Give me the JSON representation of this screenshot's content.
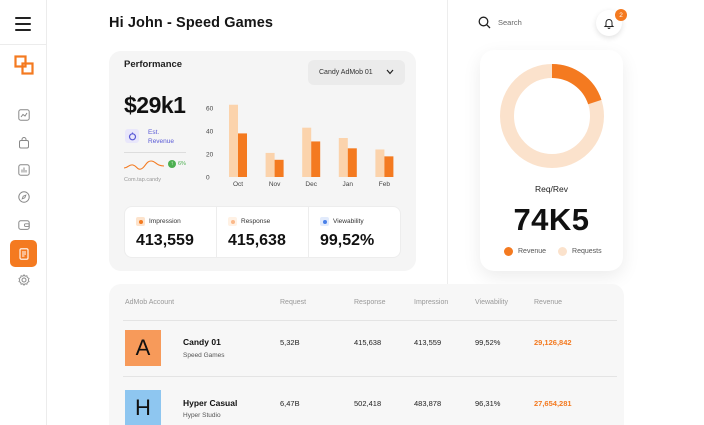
{
  "header": {
    "greeting": "Hi John - Speed Games"
  },
  "search": {
    "placeholder": "Search"
  },
  "notifications": {
    "count": "2"
  },
  "sidebar": {
    "items": [
      "trend-icon",
      "bag-icon",
      "bar-chart-icon",
      "compass-icon",
      "wallet-icon",
      "document-icon",
      "gear-icon"
    ],
    "active_index": 5
  },
  "performance": {
    "title": "Performance",
    "app_select": "Candy AdMob 01",
    "revenue": "$29k1",
    "est_label": "Est. Revenue",
    "growth": "6%",
    "spark_label": "Com.tap.candy"
  },
  "chart_data": {
    "type": "bar",
    "categories": [
      "Oct",
      "Nov",
      "Dec",
      "Jan",
      "Feb"
    ],
    "series": [
      {
        "name": "Requests",
        "values": [
          63,
          21,
          43,
          34,
          24
        ],
        "color": "#fbd3ac"
      },
      {
        "name": "Revenue",
        "values": [
          38,
          15,
          31,
          25,
          18
        ],
        "color": "#f47a20"
      }
    ],
    "yticks": [
      0,
      20,
      40,
      60
    ],
    "ylim": [
      0,
      68
    ]
  },
  "stats": [
    {
      "label": "Impression",
      "value": "413,559",
      "color": "#f47a20",
      "bg": "#fde3cc"
    },
    {
      "label": "Response",
      "value": "415,638",
      "color": "#fbb98a",
      "bg": "#fff1e4"
    },
    {
      "label": "Viewability",
      "value": "99,52%",
      "color": "#4a80e8",
      "bg": "#e2ebfc"
    }
  ],
  "donut": {
    "title": "Req/Rev",
    "value": "74K5",
    "revenue_fraction": 0.2,
    "legend": [
      {
        "label": "Revenue",
        "color": "#f47a20"
      },
      {
        "label": "Requests",
        "color": "#fbe2cc"
      }
    ]
  },
  "table": {
    "headers": [
      "AdMob Account",
      "Request",
      "Response",
      "Impression",
      "Viewability",
      "Revenue"
    ],
    "rows": [
      {
        "letter": "A",
        "color": "#f79a5a",
        "name": "Candy 01",
        "sub": "Speed Games",
        "request": "5,32B",
        "response": "415,638",
        "impression": "413,559",
        "viewability": "99,52%",
        "revenue": "29,126,842"
      },
      {
        "letter": "H",
        "color": "#8ec6f0",
        "name": "Hyper Casual",
        "sub": "Hyper Studio",
        "request": "6,47B",
        "response": "502,418",
        "impression": "483,878",
        "viewability": "96,31%",
        "revenue": "27,654,281"
      }
    ]
  }
}
